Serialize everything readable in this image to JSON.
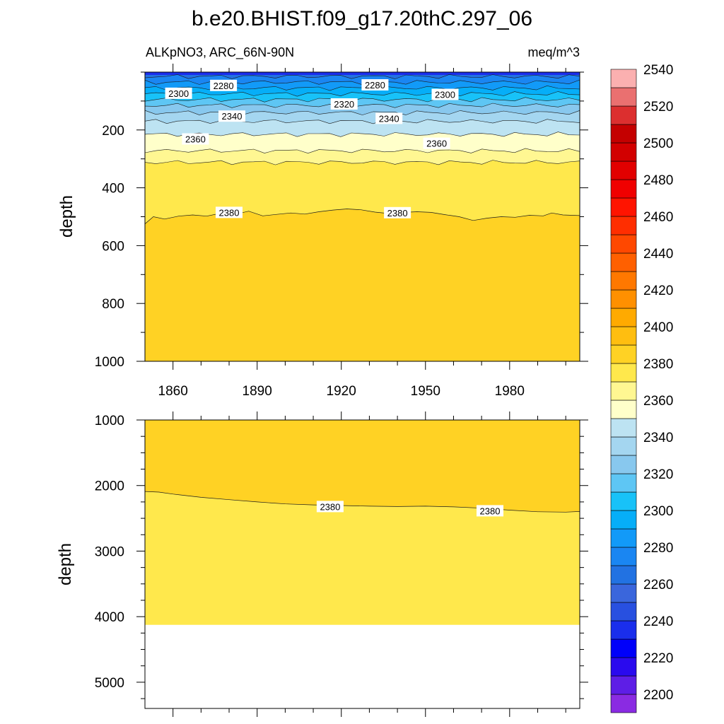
{
  "chart_data": {
    "type": "contour",
    "title": "b.e20.BHIST.f09_g17.20thC.297_06",
    "left_string": "ALKpNO3, ARC_66N-90N",
    "right_string": "meq/m^3",
    "ylabel": "depth",
    "xlim": [
      1850,
      2005
    ],
    "x_ticks": [
      1860,
      1890,
      1920,
      1950,
      1980
    ],
    "panels": [
      {
        "name": "upper",
        "ylim": [
          0,
          1000
        ],
        "y_ticks": [
          200,
          400,
          600,
          800,
          1000
        ],
        "contour_lines": [
          {
            "level": 2270,
            "depth": 15
          },
          {
            "level": 2280,
            "depth": 35
          },
          {
            "level": 2290,
            "depth": 55
          },
          {
            "level": 2300,
            "depth": 75
          },
          {
            "level": 2310,
            "depth": 95
          },
          {
            "level": 2320,
            "depth": 115
          },
          {
            "level": 2330,
            "depth": 140
          },
          {
            "level": 2340,
            "depth": 170
          },
          {
            "level": 2350,
            "depth": 215
          },
          {
            "level": 2360,
            "depth": 272
          },
          {
            "level": 2370,
            "depth": 312
          }
        ],
        "contour_2380": {
          "x": [
            1850,
            1853,
            1857,
            1862,
            1867,
            1872,
            1877,
            1882,
            1887,
            1892,
            1897,
            1902,
            1907,
            1912,
            1917,
            1922,
            1927,
            1932,
            1937,
            1942,
            1947,
            1952,
            1957,
            1962,
            1967,
            1972,
            1977,
            1982,
            1987,
            1992,
            1995,
            1999,
            2005
          ],
          "depth": [
            525,
            500,
            508,
            498,
            494,
            498,
            488,
            492,
            481,
            497,
            492,
            487,
            491,
            483,
            477,
            473,
            476,
            484,
            489,
            485,
            483,
            485,
            493,
            500,
            513,
            505,
            500,
            502,
            495,
            497,
            487,
            494,
            496
          ]
        },
        "contour_labels": [
          {
            "text": "2300",
            "x": 1862,
            "depth": 73
          },
          {
            "text": "2280",
            "x": 1878,
            "depth": 46
          },
          {
            "text": "2280",
            "x": 1932,
            "depth": 44
          },
          {
            "text": "2300",
            "x": 1957,
            "depth": 77
          },
          {
            "text": "2320",
            "x": 1921,
            "depth": 110
          },
          {
            "text": "2340",
            "x": 1881,
            "depth": 152
          },
          {
            "text": "2340",
            "x": 1937,
            "depth": 160
          },
          {
            "text": "2360",
            "x": 1868,
            "depth": 231
          },
          {
            "text": "2360",
            "x": 1954,
            "depth": 246
          },
          {
            "text": "2380",
            "x": 1880,
            "depth": 485
          },
          {
            "text": "2380",
            "x": 1940,
            "depth": 486
          }
        ]
      },
      {
        "name": "lower",
        "ylim": [
          1000,
          5400
        ],
        "y_ticks": [
          1000,
          2000,
          3000,
          4000,
          5000
        ],
        "bottom_depth": 4125,
        "contour_2380": {
          "x": [
            1850,
            1855,
            1860,
            1870,
            1880,
            1890,
            1900,
            1910,
            1920,
            1930,
            1940,
            1950,
            1960,
            1970,
            1980,
            1990,
            2000,
            2005
          ],
          "depth": [
            2090,
            2100,
            2130,
            2180,
            2215,
            2250,
            2280,
            2295,
            2305,
            2315,
            2320,
            2315,
            2325,
            2345,
            2375,
            2400,
            2405,
            2395
          ]
        },
        "contour_labels": [
          {
            "text": "2380",
            "x": 1916,
            "depth": 2320
          },
          {
            "text": "2380",
            "x": 1973,
            "depth": 2385
          }
        ]
      }
    ],
    "colorbar": {
      "labels": [
        "2200",
        "2220",
        "2240",
        "2260",
        "2280",
        "2300",
        "2320",
        "2340",
        "2360",
        "2380",
        "2400",
        "2420",
        "2440",
        "2460",
        "2480",
        "2500",
        "2520",
        "2540"
      ],
      "colors": [
        "#8a2be2",
        "#5e1ee6",
        "#2a0aee",
        "#0000fa",
        "#1a2eec",
        "#2850e0",
        "#3a66dc",
        "#2272e2",
        "#1a86f2",
        "#129af8",
        "#06aef8",
        "#18c2f8",
        "#5ec6f4",
        "#88c8ee",
        "#a4d6f0",
        "#bde3f2",
        "#ffffca",
        "#fff792",
        "#ffe84c",
        "#ffd224",
        "#ffbe10",
        "#ffaa00",
        "#ff9000",
        "#ff7800",
        "#ff6000",
        "#ff4800",
        "#ff2e00",
        "#ff1400",
        "#f00000",
        "#e20000",
        "#d20000",
        "#c40000",
        "#dc2f2f",
        "#ea7070",
        "#fbb0b0"
      ]
    }
  }
}
